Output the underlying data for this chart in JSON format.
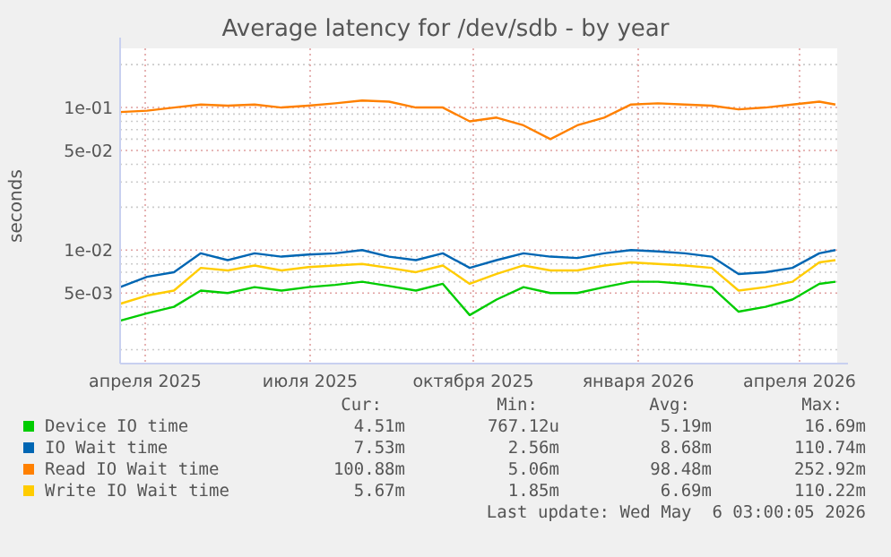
{
  "chart_data": {
    "type": "line",
    "title": "Average latency for /dev/sdb - by year",
    "ylabel": "seconds",
    "log": true,
    "grid": true,
    "legend": "bottom",
    "x": [
      "2025-04-01",
      "2025-04-16",
      "2025-05-01",
      "2025-05-16",
      "2025-05-31",
      "2025-06-15",
      "2025-06-30",
      "2025-07-15",
      "2025-07-30",
      "2025-08-14",
      "2025-08-29",
      "2025-09-13",
      "2025-09-28",
      "2025-10-13",
      "2025-10-28",
      "2025-11-12",
      "2025-11-27",
      "2025-12-12",
      "2025-12-27",
      "2026-01-11",
      "2026-01-26",
      "2026-02-10",
      "2026-02-25",
      "2026-03-12",
      "2026-03-27",
      "2026-04-11",
      "2026-04-26",
      "2026-05-05"
    ],
    "xlim": [
      "2025-04-01",
      "2026-05-06"
    ],
    "xticks": [
      {
        "value": "2025-04-15",
        "label": "апреля 2025"
      },
      {
        "value": "2025-07-16",
        "label": "июля 2025"
      },
      {
        "value": "2025-10-15",
        "label": "октября 2025"
      },
      {
        "value": "2026-01-15",
        "label": "января 2026"
      },
      {
        "value": "2026-04-15",
        "label": "апреля 2026"
      }
    ],
    "ylim": [
      0.0016,
      0.26
    ],
    "yticks": [
      {
        "value": 0.2,
        "label": null
      },
      {
        "value": 0.1,
        "label": "1e-01"
      },
      {
        "value": 0.09,
        "label": null
      },
      {
        "value": 0.08,
        "label": null
      },
      {
        "value": 0.07,
        "label": null
      },
      {
        "value": 0.06,
        "label": null
      },
      {
        "value": 0.05,
        "label": "5e-02"
      },
      {
        "value": 0.04,
        "label": null
      },
      {
        "value": 0.03,
        "label": null
      },
      {
        "value": 0.02,
        "label": null
      },
      {
        "value": 0.01,
        "label": "1e-02"
      },
      {
        "value": 0.009,
        "label": null
      },
      {
        "value": 0.008,
        "label": null
      },
      {
        "value": 0.007,
        "label": null
      },
      {
        "value": 0.006,
        "label": null
      },
      {
        "value": 0.005,
        "label": "5e-03"
      },
      {
        "value": 0.004,
        "label": null
      },
      {
        "value": 0.003,
        "label": null
      },
      {
        "value": 0.002,
        "label": null
      }
    ],
    "series": [
      {
        "name": "Device IO time",
        "color": "#00cc00",
        "values": [
          0.0032,
          0.0036,
          0.004,
          0.0052,
          0.005,
          0.0055,
          0.0052,
          0.0055,
          0.0057,
          0.006,
          0.0056,
          0.0052,
          0.0058,
          0.0035,
          0.0045,
          0.0055,
          0.005,
          0.005,
          0.0055,
          0.006,
          0.006,
          0.0058,
          0.0055,
          0.0037,
          0.004,
          0.0045,
          0.0058,
          0.006
        ]
      },
      {
        "name": "IO Wait time",
        "color": "#0066b3",
        "values": [
          0.0055,
          0.0065,
          0.007,
          0.0095,
          0.0085,
          0.0095,
          0.009,
          0.0093,
          0.0095,
          0.01,
          0.009,
          0.0085,
          0.0095,
          0.0075,
          0.0085,
          0.0095,
          0.009,
          0.0088,
          0.0095,
          0.01,
          0.0098,
          0.0095,
          0.009,
          0.0068,
          0.007,
          0.0075,
          0.0095,
          0.01
        ]
      },
      {
        "name": "Read IO Wait time",
        "color": "#ff8000",
        "values": [
          0.093,
          0.095,
          0.1,
          0.105,
          0.103,
          0.105,
          0.1,
          0.103,
          0.107,
          0.112,
          0.11,
          0.1,
          0.1,
          0.08,
          0.085,
          0.075,
          0.06,
          0.075,
          0.085,
          0.105,
          0.107,
          0.105,
          0.103,
          0.097,
          0.1,
          0.105,
          0.11,
          0.105
        ]
      },
      {
        "name": "Write IO Wait time",
        "color": "#ffcc00",
        "values": [
          0.0042,
          0.0048,
          0.0052,
          0.0075,
          0.0072,
          0.0078,
          0.0072,
          0.0076,
          0.0078,
          0.008,
          0.0075,
          0.007,
          0.0078,
          0.0058,
          0.0068,
          0.0078,
          0.0072,
          0.0072,
          0.0078,
          0.0082,
          0.008,
          0.0078,
          0.0075,
          0.0052,
          0.0055,
          0.006,
          0.0082,
          0.0085
        ]
      }
    ],
    "annotations": [
      "Cur:",
      "Min:",
      "Avg:",
      "Max:",
      "4.51m",
      "767.12u",
      "5.19m",
      "16.69m",
      "7.53m",
      "2.56m",
      "8.68m",
      "110.74m",
      "100.88m",
      "5.06m",
      "98.48m",
      "252.92m",
      "5.67m",
      "1.85m",
      "6.69m",
      "110.22m",
      "Last update: Wed May  6 03:00:05 2026"
    ]
  }
}
